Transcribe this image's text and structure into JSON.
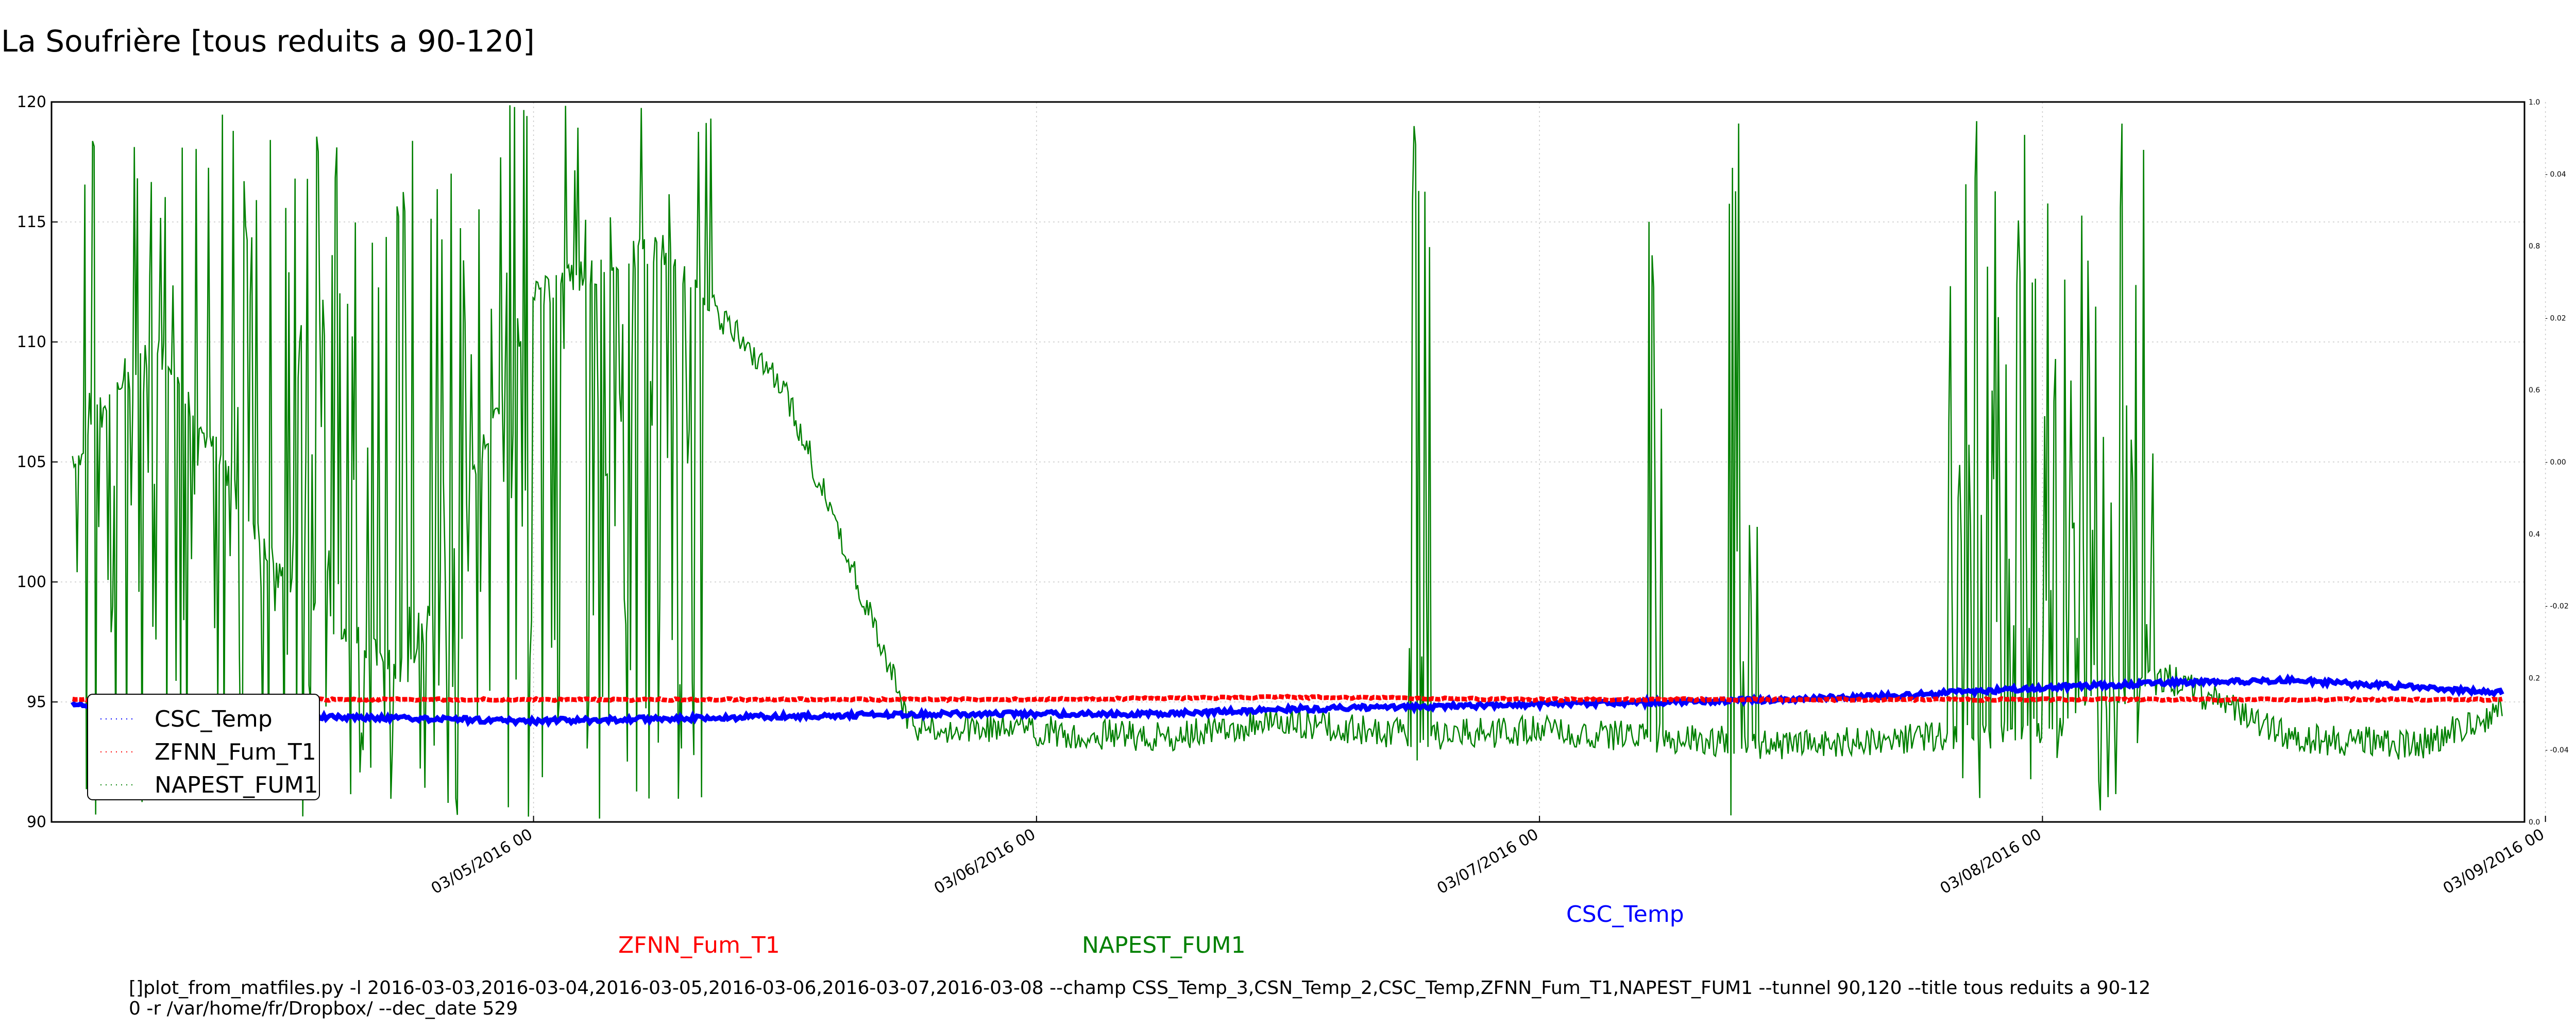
{
  "chart_data": {
    "type": "line",
    "title": "La Soufrière [tous reduits a 90-120]",
    "xlabel": "",
    "ylabel": "",
    "ylim": [
      90,
      120
    ],
    "yticks": [
      "90",
      "95",
      "100",
      "105",
      "110",
      "115",
      "120"
    ],
    "xlim": [
      "2016-03-04 01:00",
      "2016-03-08 23:00"
    ],
    "xticks": [
      {
        "date": "2016-03-05 00:00",
        "label": "03/05/2016 00"
      },
      {
        "date": "2016-03-06 00:00",
        "label": "03/06/2016 00"
      },
      {
        "date": "2016-03-07 00:00",
        "label": "03/07/2016 00"
      },
      {
        "date": "2016-03-08 00:00",
        "label": "03/08/2016 00"
      },
      {
        "date": "2016-03-09 00:00",
        "label": "03/09/2016 00"
      }
    ],
    "right_axis_ticks": [
      "1.0",
      "0.8",
      "0.6",
      "0.4",
      "0.2",
      "0.0"
    ],
    "right_axis_ticks_2": [
      "0.04",
      "0.02",
      "0.00",
      "-0.02",
      "-0.04"
    ],
    "grid": true,
    "legend_position": "lower-left",
    "series": [
      {
        "name": "CSC_Temp",
        "color": "#0000ff",
        "x": [
          "2016-03-04 02:00",
          "2016-03-04 06:00",
          "2016-03-04 12:00",
          "2016-03-04 18:00",
          "2016-03-05 00:00",
          "2016-03-05 06:00",
          "2016-03-05 12:00",
          "2016-03-05 18:00",
          "2016-03-06 00:00",
          "2016-03-06 06:00",
          "2016-03-06 12:00",
          "2016-03-06 18:00",
          "2016-03-07 00:00",
          "2016-03-07 06:00",
          "2016-03-07 12:00",
          "2016-03-07 18:00",
          "2016-03-08 00:00",
          "2016-03-08 06:00",
          "2016-03-08 12:00",
          "2016-03-08 18:00",
          "2016-03-08 22:00"
        ],
        "y": [
          94.9,
          94.6,
          94.4,
          94.3,
          94.2,
          94.3,
          94.4,
          94.5,
          94.5,
          94.5,
          94.7,
          94.8,
          94.9,
          95.0,
          95.1,
          95.3,
          95.6,
          95.8,
          95.9,
          95.6,
          95.4
        ]
      },
      {
        "name": "ZFNN_Fum_T1",
        "color": "#ff0000",
        "x": [
          "2016-03-04 02:00",
          "2016-03-04 12:00",
          "2016-03-05 00:00",
          "2016-03-05 12:00",
          "2016-03-06 00:00",
          "2016-03-06 12:00",
          "2016-03-07 00:00",
          "2016-03-07 12:00",
          "2016-03-08 00:00",
          "2016-03-08 12:00",
          "2016-03-08 22:00"
        ],
        "y": [
          95.1,
          95.1,
          95.1,
          95.1,
          95.1,
          95.2,
          95.1,
          95.1,
          95.1,
          95.1,
          95.1
        ]
      },
      {
        "name": "NAPEST_FUM1",
        "color": "#008000",
        "x": [
          "2016-03-04 02:00",
          "2016-03-04 06:00",
          "2016-03-04 12:00",
          "2016-03-04 18:00",
          "2016-03-05 00:00",
          "2016-03-05 06:00",
          "2016-03-05 12:00",
          "2016-03-05 18:00",
          "2016-03-06 00:00",
          "2016-03-06 06:00",
          "2016-03-06 12:00",
          "2016-03-06 18:00",
          "2016-03-07 00:00",
          "2016-03-07 06:00",
          "2016-03-07 12:00",
          "2016-03-07 18:00",
          "2016-03-08 00:00",
          "2016-03-08 06:00",
          "2016-03-08 12:00",
          "2016-03-08 18:00",
          "2016-03-08 22:00"
        ],
        "y": [
          105,
          110,
          100,
          96,
          112,
          114,
          108,
          94,
          93.8,
          93.5,
          94.2,
          93.6,
          93.8,
          93.5,
          93.2,
          93.5,
          93.8,
          96,
          93.5,
          93.2,
          94.7
        ]
      }
    ]
  },
  "annotations": [
    {
      "text": "CSC_Temp",
      "color": "#0000ff"
    },
    {
      "text": "ZFNN_Fum_T1",
      "color": "#ff0000"
    },
    {
      "text": "NAPEST_FUM1",
      "color": "#008000"
    }
  ],
  "command_line": [
    "[]plot_from_matfiles.py -l 2016-03-03,2016-03-04,2016-03-05,2016-03-06,2016-03-07,2016-03-08 --champ CSS_Temp_3,CSN_Temp_2,CSC_Temp,ZFNN_Fum_T1,NAPEST_FUM1 --tunnel 90,120 --title tous reduits a 90-12",
    "0 -r /var/home/fr/Dropbox/ --dec_date 529"
  ]
}
